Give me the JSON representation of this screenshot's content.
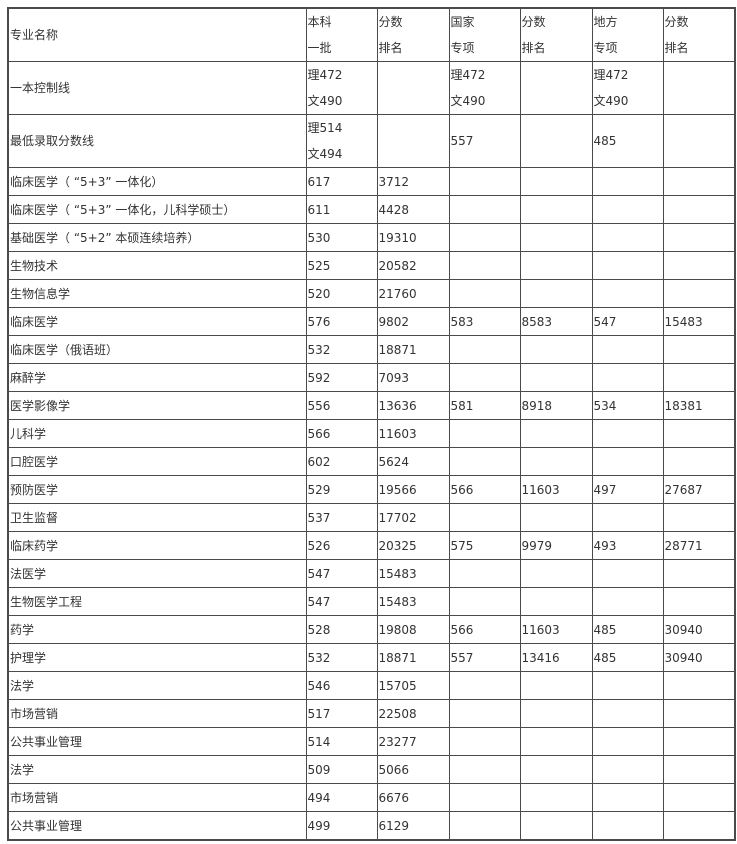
{
  "table": {
    "header": [
      [
        "专业名称"
      ],
      [
        "本科",
        "一批"
      ],
      [
        "分数",
        "排名"
      ],
      [
        "国家",
        "专项"
      ],
      [
        "分数",
        "排名"
      ],
      [
        "地方",
        "专项"
      ],
      [
        "分数",
        "排名"
      ]
    ],
    "rows": [
      [
        [
          "一本控制线"
        ],
        [
          "理472",
          "文490"
        ],
        [],
        [
          "理472",
          "文490"
        ],
        [],
        [
          "理472",
          "文490"
        ],
        []
      ],
      [
        [
          "最低录取分数线"
        ],
        [
          "理514",
          "文494"
        ],
        [],
        [
          "557"
        ],
        [],
        [
          "485"
        ],
        []
      ],
      [
        [
          "临床医学（ “5+3” 一体化）"
        ],
        [
          "617"
        ],
        [
          "3712"
        ],
        [],
        [],
        [],
        []
      ],
      [
        [
          "临床医学（ “5+3” 一体化，儿科学硕士）"
        ],
        [
          "611"
        ],
        [
          "4428"
        ],
        [],
        [],
        [],
        []
      ],
      [
        [
          "基础医学（ “5+2” 本硕连续培养）"
        ],
        [
          "530"
        ],
        [
          "19310"
        ],
        [],
        [],
        [],
        []
      ],
      [
        [
          "生物技术"
        ],
        [
          "525"
        ],
        [
          "20582"
        ],
        [],
        [],
        [],
        []
      ],
      [
        [
          "生物信息学"
        ],
        [
          "520"
        ],
        [
          "21760"
        ],
        [],
        [],
        [],
        []
      ],
      [
        [
          "临床医学"
        ],
        [
          "576"
        ],
        [
          "9802"
        ],
        [
          "583"
        ],
        [
          "8583"
        ],
        [
          "547"
        ],
        [
          "15483"
        ]
      ],
      [
        [
          "临床医学（俄语班）"
        ],
        [
          "532"
        ],
        [
          "18871"
        ],
        [],
        [],
        [],
        []
      ],
      [
        [
          "麻醉学"
        ],
        [
          "592"
        ],
        [
          "7093"
        ],
        [],
        [],
        [],
        []
      ],
      [
        [
          "医学影像学"
        ],
        [
          "556"
        ],
        [
          "13636"
        ],
        [
          "581"
        ],
        [
          "8918"
        ],
        [
          "534"
        ],
        [
          "18381"
        ]
      ],
      [
        [
          "儿科学"
        ],
        [
          "566"
        ],
        [
          "11603"
        ],
        [],
        [],
        [],
        []
      ],
      [
        [
          "口腔医学"
        ],
        [
          "602"
        ],
        [
          "5624"
        ],
        [],
        [],
        [],
        []
      ],
      [
        [
          "预防医学"
        ],
        [
          "529"
        ],
        [
          "19566"
        ],
        [
          "566"
        ],
        [
          "11603"
        ],
        [
          "497"
        ],
        [
          "27687"
        ]
      ],
      [
        [
          "卫生监督"
        ],
        [
          "537"
        ],
        [
          "17702"
        ],
        [],
        [],
        [],
        []
      ],
      [
        [
          "临床药学"
        ],
        [
          "526"
        ],
        [
          "20325"
        ],
        [
          "575"
        ],
        [
          "9979"
        ],
        [
          "493"
        ],
        [
          "28771"
        ]
      ],
      [
        [
          "法医学"
        ],
        [
          "547"
        ],
        [
          "15483"
        ],
        [],
        [],
        [],
        []
      ],
      [
        [
          "生物医学工程"
        ],
        [
          "547"
        ],
        [
          "15483"
        ],
        [],
        [],
        [],
        []
      ],
      [
        [
          "药学"
        ],
        [
          "528"
        ],
        [
          "19808"
        ],
        [
          "566"
        ],
        [
          "11603"
        ],
        [
          "485"
        ],
        [
          "30940"
        ]
      ],
      [
        [
          "护理学"
        ],
        [
          "532"
        ],
        [
          "18871"
        ],
        [
          "557"
        ],
        [
          "13416"
        ],
        [
          "485"
        ],
        [
          "30940"
        ]
      ],
      [
        [
          "法学"
        ],
        [
          "546"
        ],
        [
          "15705"
        ],
        [],
        [],
        [],
        []
      ],
      [
        [
          "市场营销"
        ],
        [
          "517"
        ],
        [
          "22508"
        ],
        [],
        [],
        [],
        []
      ],
      [
        [
          "公共事业管理"
        ],
        [
          "514"
        ],
        [
          "23277"
        ],
        [],
        [],
        [],
        []
      ],
      [
        [
          "法学"
        ],
        [
          "509"
        ],
        [
          "5066"
        ],
        [],
        [],
        [],
        []
      ],
      [
        [
          "市场营销"
        ],
        [
          "494"
        ],
        [
          "6676"
        ],
        [],
        [],
        [],
        []
      ],
      [
        [
          "公共事业管理"
        ],
        [
          "499"
        ],
        [
          "6129"
        ],
        [],
        [],
        [],
        []
      ]
    ]
  }
}
